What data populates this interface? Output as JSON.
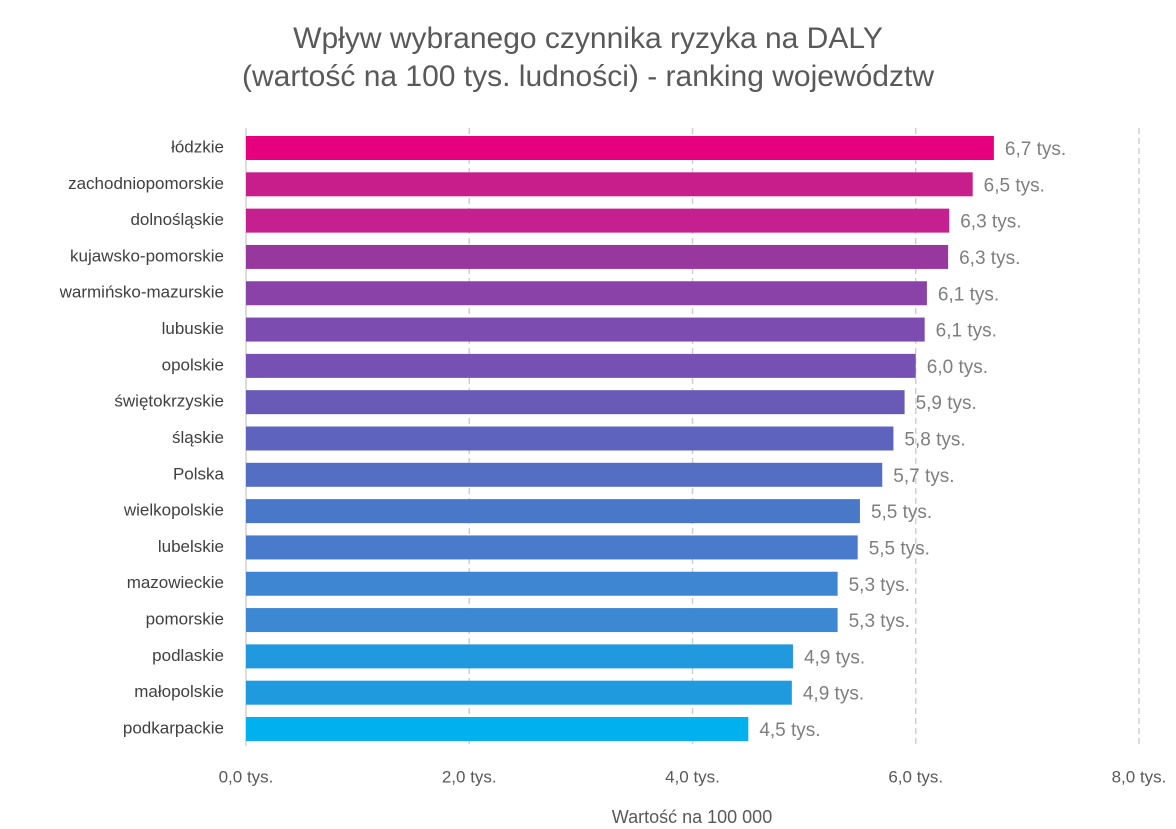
{
  "chart_data": {
    "type": "bar",
    "orientation": "horizontal",
    "title": "Wpływ wybranego czynnika ryzyka na DALY",
    "subtitle": "(wartość na 100 tys. ludności) - ranking województw",
    "x_axis_label": "Wartość na 100 000",
    "categories": [
      "łódzkie",
      "zachodniopomorskie",
      "dolnośląskie",
      "kujawsko-pomorskie",
      "warmińsko-mazurskie",
      "lubuskie",
      "opolskie",
      "świętokrzyskie",
      "śląskie",
      "Polska",
      "wielkopolskie",
      "lubelskie",
      "mazowieckie",
      "pomorskie",
      "podlaskie",
      "małopolskie",
      "podkarpackie"
    ],
    "values": [
      6.7,
      6.51,
      6.3,
      6.29,
      6.1,
      6.08,
      6.0,
      5.9,
      5.8,
      5.7,
      5.5,
      5.48,
      5.3,
      5.3,
      4.9,
      4.89,
      4.5
    ],
    "value_labels": [
      "6,7 tys.",
      "6,5 tys.",
      "6,3 tys.",
      "6,3 tys.",
      "6,1 tys.",
      "6,1 tys.",
      "6,0 tys.",
      "5,9 tys.",
      "5,8 tys.",
      "5,7 tys.",
      "5,5 tys.",
      "5,5 tys.",
      "5,3 tys.",
      "5,3 tys.",
      "4,9 tys.",
      "4,9 tys.",
      "4,5 tys."
    ],
    "colors": [
      "#e6007e",
      "#c81e8c",
      "#c4208f",
      "#98389f",
      "#8b42a8",
      "#7c4cb0",
      "#7650b3",
      "#6a5ab8",
      "#5e64bd",
      "#546ec3",
      "#4a78c8",
      "#4a7acb",
      "#3f86d2",
      "#3d88d3",
      "#2199de",
      "#1f9adf",
      "#00b0ef"
    ],
    "xlim": [
      0,
      8
    ],
    "xticks": [
      {
        "value": 0,
        "label": "0,0 tys."
      },
      {
        "value": 2,
        "label": "2,0 tys."
      },
      {
        "value": 4,
        "label": "4,0 tys."
      },
      {
        "value": 6,
        "label": "6,0 tys."
      },
      {
        "value": 8,
        "label": "8,0 tys."
      }
    ],
    "grid": true
  }
}
